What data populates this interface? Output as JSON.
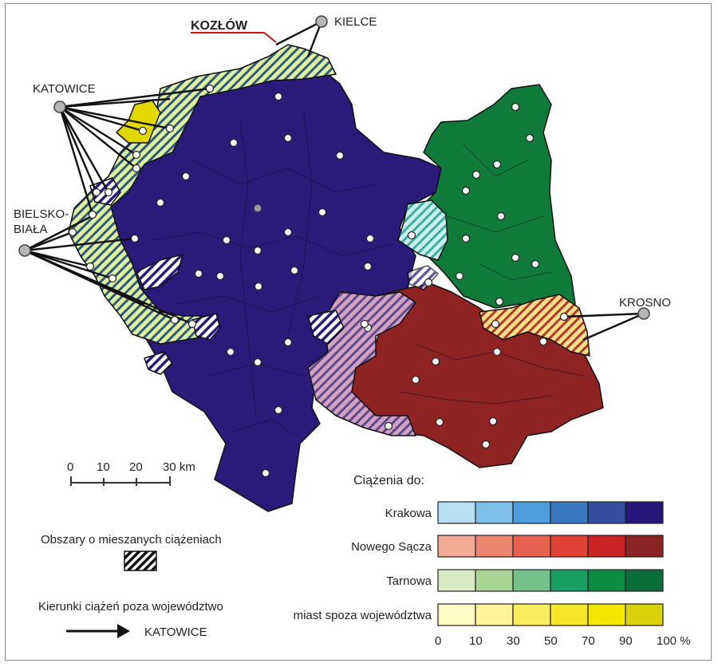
{
  "map": {
    "highlight_town": "KOZŁÓW",
    "cities": {
      "kielce": "KIELCE",
      "katowice": "KATOWICE",
      "bielsko_line1": "BIELSKO-",
      "bielsko_line2": "BIAŁA",
      "krosno": "KROSNO"
    },
    "colors": {
      "krakow_region": "#2a1a7a",
      "nowy_sacz_region": "#8e2322",
      "tarnow_region": "#0f7a3a",
      "outside_region": "#e3d700",
      "mixed_hatch": "#f2f2f2"
    }
  },
  "scale_bar": {
    "ticks": [
      "0",
      "10",
      "20",
      "30 km"
    ]
  },
  "mixed_legend": {
    "label": "Obszary o mieszanych ciążeniach"
  },
  "direction_legend": {
    "label": "Kierunki ciążeń poza województwo",
    "arrow_label": "KATOWICE"
  },
  "attraction_legend": {
    "title": "Ciążenia  do:",
    "rows": [
      {
        "label": "Krakowa",
        "colors": [
          "#b9e1f6",
          "#7fbfea",
          "#4f9ddc",
          "#3b78c2",
          "#334e9f",
          "#26167a"
        ]
      },
      {
        "label": "Nowego Sącza",
        "colors": [
          "#f2ab97",
          "#ec8570",
          "#e76150",
          "#e14236",
          "#c92426",
          "#8c2324"
        ]
      },
      {
        "label": "Tarnowa",
        "colors": [
          "#d6eac5",
          "#a8d594",
          "#74c18b",
          "#17a062",
          "#0d8a44",
          "#0b6e38"
        ]
      },
      {
        "label": "miast spoza województwa",
        "colors": [
          "#fffbc6",
          "#fdf49a",
          "#faed5e",
          "#f6e729",
          "#f3e600",
          "#dcd20c"
        ]
      }
    ],
    "scale": [
      "0",
      "10",
      "30",
      "50",
      "70",
      "90",
      "100 %"
    ]
  }
}
